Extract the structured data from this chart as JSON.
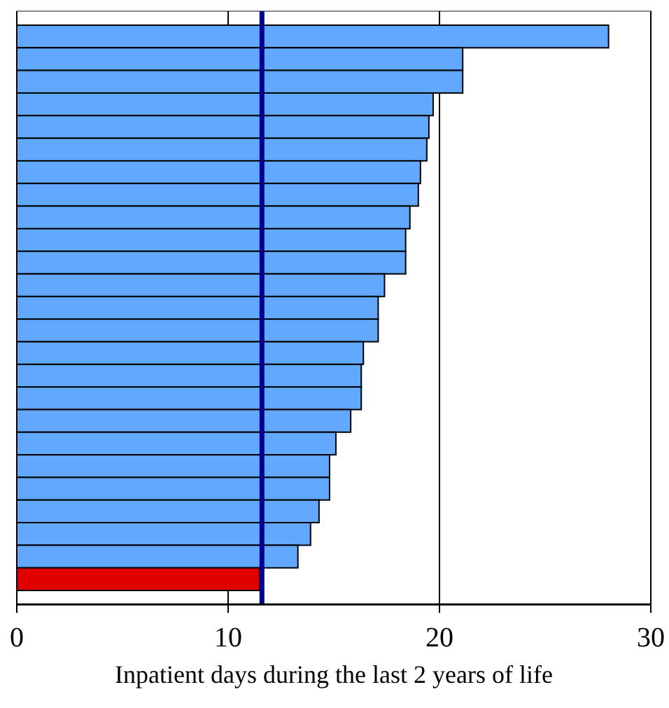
{
  "chart_data": {
    "type": "bar",
    "orientation": "horizontal",
    "xlabel": "Inpatient days during the last 2 years of life",
    "categories": [
      null,
      null,
      null,
      null,
      null,
      null,
      null,
      null,
      null,
      null,
      null,
      null,
      null,
      null,
      null,
      null,
      null,
      null,
      null,
      null,
      null,
      null,
      null,
      null,
      null
    ],
    "values": [
      28.0,
      21.1,
      21.1,
      19.7,
      19.5,
      19.4,
      19.1,
      19.0,
      18.6,
      18.4,
      18.4,
      17.4,
      17.1,
      17.1,
      16.4,
      16.3,
      16.3,
      15.8,
      15.1,
      14.8,
      14.8,
      14.3,
      13.9,
      13.3,
      11.5
    ],
    "colors": [
      "#62a8ff",
      "#62a8ff",
      "#62a8ff",
      "#62a8ff",
      "#62a8ff",
      "#62a8ff",
      "#62a8ff",
      "#62a8ff",
      "#62a8ff",
      "#62a8ff",
      "#62a8ff",
      "#62a8ff",
      "#62a8ff",
      "#62a8ff",
      "#62a8ff",
      "#62a8ff",
      "#62a8ff",
      "#62a8ff",
      "#62a8ff",
      "#62a8ff",
      "#62a8ff",
      "#62a8ff",
      "#62a8ff",
      "#62a8ff",
      "#e00000"
    ],
    "xlim": [
      0,
      30
    ],
    "xticks": [
      0,
      10,
      20,
      30
    ],
    "grid": "x",
    "ref_lines": [
      {
        "axis": "x",
        "value": 11.6,
        "color": "#000090"
      }
    ]
  }
}
